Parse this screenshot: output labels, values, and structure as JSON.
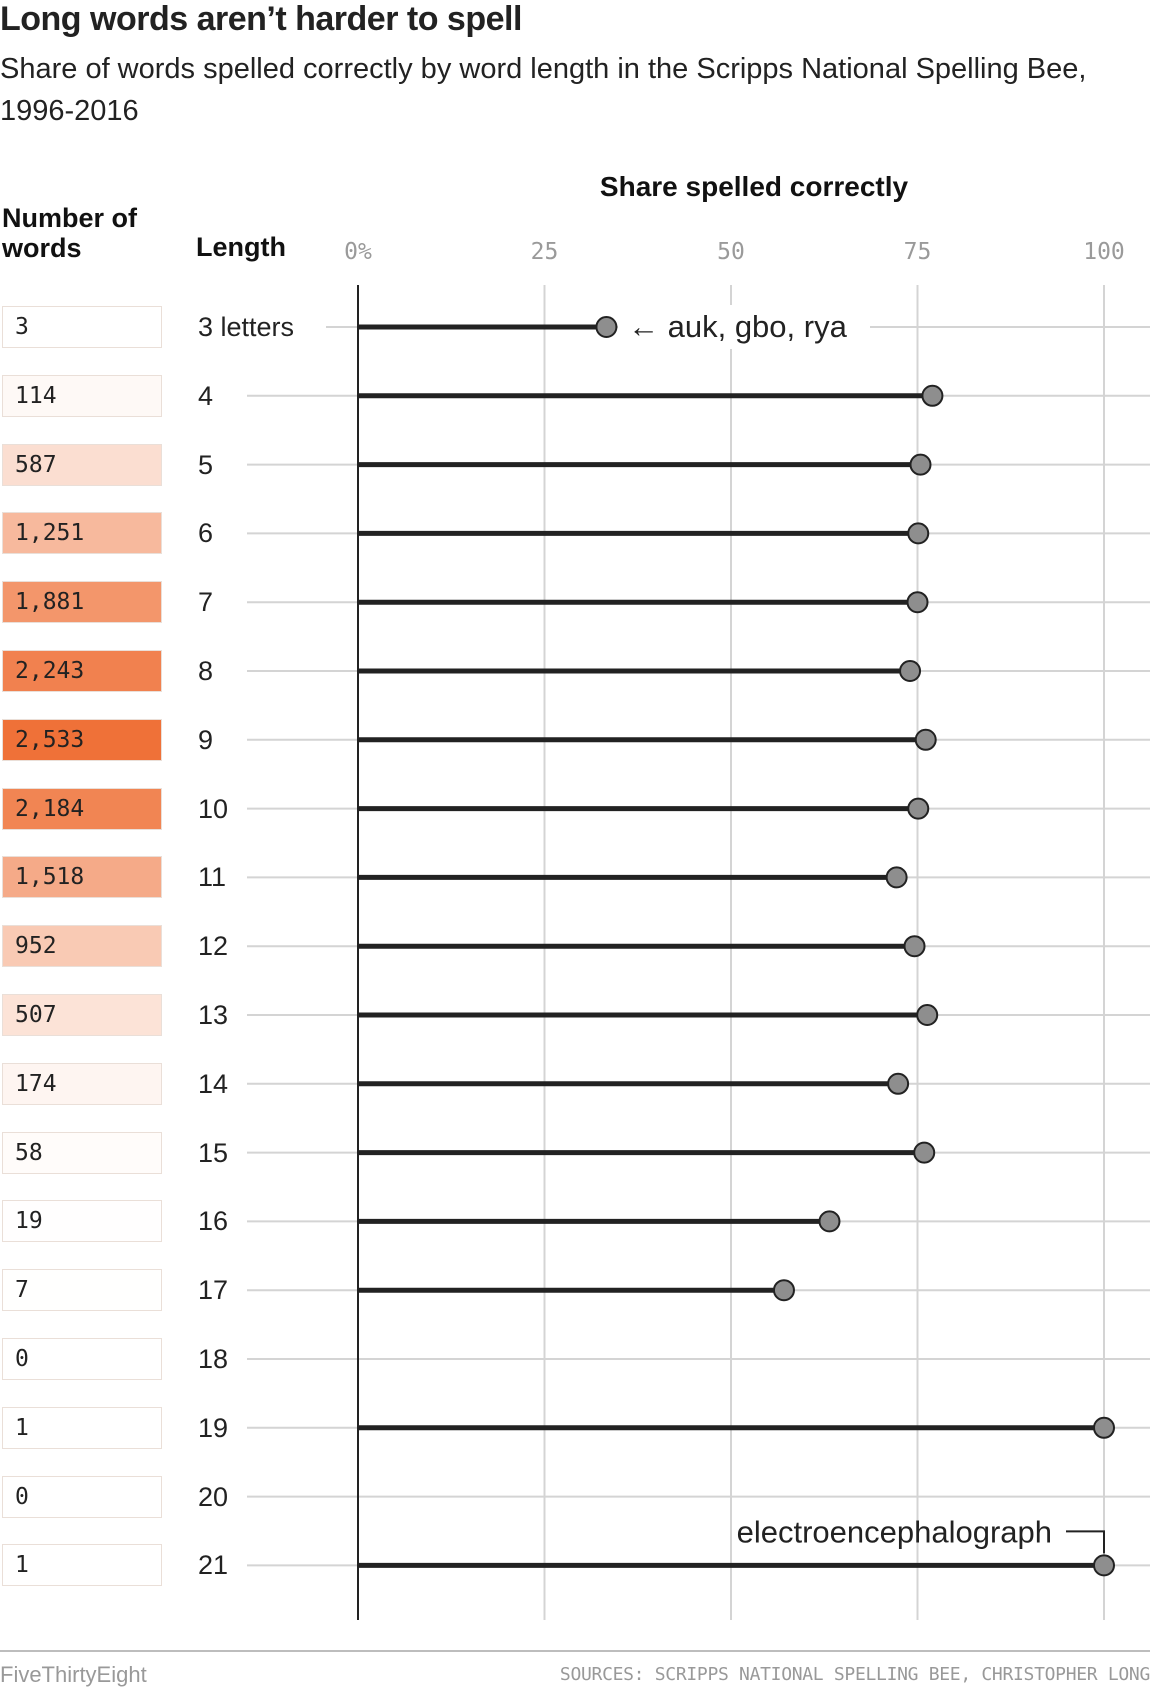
{
  "chart_data": {
    "type": "lollipop",
    "title": "Long words aren’t harder to spell",
    "subtitle": "Share of words spelled correctly by word length in the Scripps National Spelling Bee, 1996-2016",
    "xlabel": "Share spelled correctly",
    "count_header": "Number of words",
    "length_header": "Length",
    "xlim": [
      0,
      100
    ],
    "ticks": [
      "0%",
      "25",
      "50",
      "75",
      "100"
    ],
    "tick_values": [
      0,
      25,
      50,
      75,
      100
    ],
    "rows": [
      {
        "length": "3 letters",
        "count": "3",
        "count_value": 3,
        "share": 33.3
      },
      {
        "length": "4",
        "count": "114",
        "count_value": 114,
        "share": 77
      },
      {
        "length": "5",
        "count": "587",
        "count_value": 587,
        "share": 75.4
      },
      {
        "length": "6",
        "count": "1,251",
        "count_value": 1251,
        "share": 75.1
      },
      {
        "length": "7",
        "count": "1,881",
        "count_value": 1881,
        "share": 75
      },
      {
        "length": "8",
        "count": "2,243",
        "count_value": 2243,
        "share": 74
      },
      {
        "length": "9",
        "count": "2,533",
        "count_value": 2533,
        "share": 76.1
      },
      {
        "length": "10",
        "count": "2,184",
        "count_value": 2184,
        "share": 75.1
      },
      {
        "length": "11",
        "count": "1,518",
        "count_value": 1518,
        "share": 72.2
      },
      {
        "length": "12",
        "count": "952",
        "count_value": 952,
        "share": 74.6
      },
      {
        "length": "13",
        "count": "507",
        "count_value": 507,
        "share": 76.3
      },
      {
        "length": "14",
        "count": "174",
        "count_value": 174,
        "share": 72.4
      },
      {
        "length": "15",
        "count": "58",
        "count_value": 58,
        "share": 75.9
      },
      {
        "length": "16",
        "count": "19",
        "count_value": 19,
        "share": 63.2
      },
      {
        "length": "17",
        "count": "7",
        "count_value": 7,
        "share": 57.1
      },
      {
        "length": "18",
        "count": "0",
        "count_value": 0,
        "share": null
      },
      {
        "length": "19",
        "count": "1",
        "count_value": 1,
        "share": 100
      },
      {
        "length": "20",
        "count": "0",
        "count_value": 0,
        "share": null
      },
      {
        "length": "21",
        "count": "1",
        "count_value": 1,
        "share": 100
      }
    ],
    "annotations": [
      {
        "text": "← auk, gbo, rya",
        "row": 0
      },
      {
        "text": "electroencephalograph",
        "row": 18
      }
    ],
    "colors": {
      "dot": "#8e8e8e",
      "stem": "#222222",
      "grid": "#d4d4d4",
      "count_scale_max": "#ef7138"
    }
  },
  "footer": {
    "brand": "FiveThirtyEight",
    "source": "SOURCES: SCRIPPS NATIONAL SPELLING BEE, CHRISTOPHER LONG"
  }
}
